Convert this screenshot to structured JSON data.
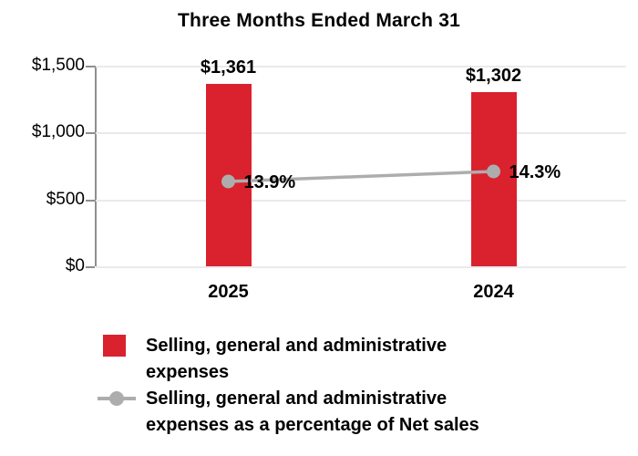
{
  "title": "Three Months Ended March 31",
  "chart_data": {
    "type": "bar",
    "title": "Three Months Ended March 31",
    "categories": [
      "2025",
      "2024"
    ],
    "series": [
      {
        "name": "Selling, general and administrative expenses",
        "type": "bar",
        "values": [
          1361,
          1302
        ],
        "labels": [
          "$1,361",
          "$1,302"
        ],
        "color": "#D9222E"
      },
      {
        "name": "Selling, general and administrative expenses as a percentage of Net sales",
        "type": "line",
        "values": [
          13.9,
          14.3
        ],
        "labels": [
          "13.9%",
          "14.3%"
        ],
        "color": "#ADADAD"
      }
    ],
    "xlabel": "",
    "ylabel": "",
    "ylim": [
      0,
      1500
    ],
    "y_ticks": [
      {
        "value": 1500,
        "label": "$1,500"
      },
      {
        "value": 1000,
        "label": "$1,000"
      },
      {
        "value": 500,
        "label": "$500"
      },
      {
        "value": 0,
        "label": "$0"
      }
    ],
    "grid": true,
    "legend_position": "bottom-left"
  },
  "legend": {
    "items": [
      {
        "swatch": "red-square-swatch",
        "lines": [
          "Selling, general and administrative",
          "expenses"
        ]
      },
      {
        "swatch": "gray-line-marker-swatch",
        "lines": [
          "Selling, general and administrative",
          "expenses as a percentage of Net sales"
        ]
      }
    ]
  },
  "colors": {
    "bar": "#D9222E",
    "line": "#ADADAD",
    "grid": "#EAEAEA",
    "axis": "#8F8F8F",
    "text": "#000000"
  }
}
